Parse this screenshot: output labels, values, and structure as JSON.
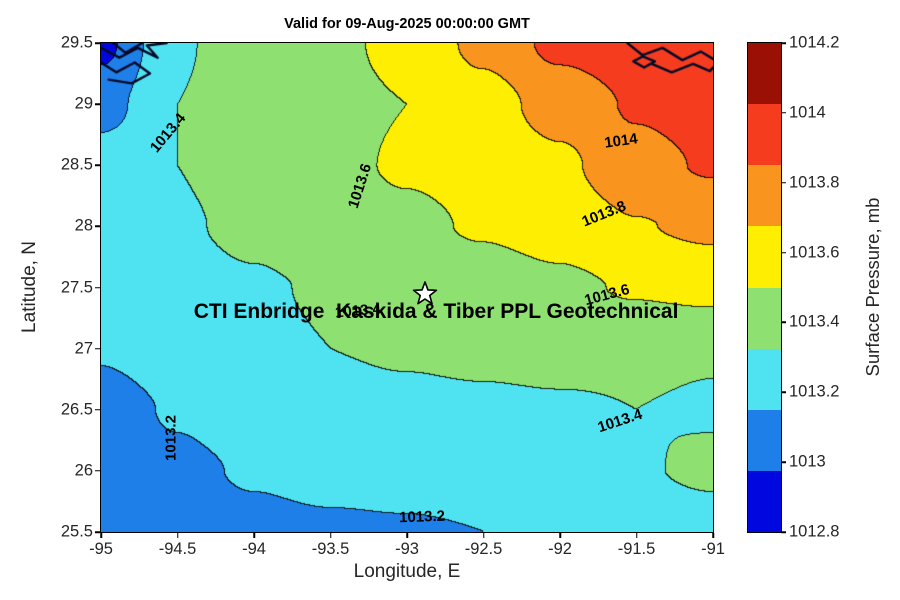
{
  "figure": {
    "title": "Valid for 09-Aug-2025 00:00:00 GMT",
    "xlabel": "Longitude, E",
    "ylabel": "Latitude, N",
    "background_color": "#ffffff"
  },
  "axes": {
    "x_ticks": [
      "-95",
      "-94.5",
      "-94",
      "-93.5",
      "-93",
      "-92.5",
      "-92",
      "-91.5",
      "-91"
    ],
    "y_ticks": [
      "29.5",
      "29",
      "28.5",
      "28",
      "27.5",
      "27",
      "26.5",
      "26",
      "25.5"
    ],
    "xlim": [
      -95,
      -91
    ],
    "ylim": [
      25.5,
      29.5
    ]
  },
  "colorbar": {
    "label": "Surface Pressure, mb",
    "tick_labels_top_to_bottom": [
      "1014.2",
      "1014",
      "1013.8",
      "1013.6",
      "1013.4",
      "1013.2",
      "1013",
      "1012.8"
    ],
    "colors_top_to_bottom": [
      "#9b1005",
      "#f53c1e",
      "#f9941e",
      "#fdee02",
      "#8ee070",
      "#4fe3f2",
      "#1f7fe8",
      "#0008e0"
    ],
    "range": [
      1012.8,
      1014.2
    ]
  },
  "annotations": {
    "site_label": {
      "text": "CTI Enbridge  Kaskida & Tiber PPL Geotechnical",
      "lon": -92.81,
      "lat": 27.3
    },
    "star_marker": {
      "symbol": "star",
      "lon": -92.88,
      "lat": 27.45
    }
  },
  "chart_data": {
    "type": "heatmap",
    "title": "Valid for 09-Aug-2025 00:00:00 GMT",
    "xlabel": "Longitude, E",
    "ylabel": "Latitude, N",
    "value_label": "Surface Pressure, mb",
    "grid": true,
    "x": [
      -95,
      -94.5,
      -94,
      -93.5,
      -93,
      -92.5,
      -92,
      -91.5,
      -91
    ],
    "y": [
      29.5,
      29,
      28.5,
      28,
      27.5,
      27,
      26.5,
      26,
      25.5
    ],
    "values": [
      [
        1012.95,
        1013.38,
        1013.5,
        1013.56,
        1013.65,
        1013.85,
        1014.05,
        1014.12,
        1014.15
      ],
      [
        1013.12,
        1013.4,
        1013.5,
        1013.55,
        1013.6,
        1013.72,
        1013.88,
        1014.02,
        1014.08
      ],
      [
        1013.3,
        1013.4,
        1013.48,
        1013.56,
        1013.62,
        1013.66,
        1013.76,
        1013.94,
        1014.02
      ],
      [
        1013.3,
        1013.38,
        1013.44,
        1013.52,
        1013.56,
        1013.62,
        1013.68,
        1013.79,
        1013.84
      ],
      [
        1013.28,
        1013.34,
        1013.38,
        1013.42,
        1013.46,
        1013.5,
        1013.56,
        1013.62,
        1013.66
      ],
      [
        1013.22,
        1013.3,
        1013.36,
        1013.4,
        1013.42,
        1013.44,
        1013.46,
        1013.44,
        1013.42
      ],
      [
        1013.12,
        1013.22,
        1013.3,
        1013.34,
        1013.36,
        1013.37,
        1013.38,
        1013.4,
        1013.38
      ],
      [
        1013.08,
        1013.16,
        1013.22,
        1013.26,
        1013.28,
        1013.3,
        1013.33,
        1013.38,
        1013.44
      ],
      [
        1013.05,
        1013.1,
        1013.15,
        1013.17,
        1013.18,
        1013.2,
        1013.22,
        1013.26,
        1013.3
      ]
    ],
    "value_min": 1012.8,
    "value_max": 1014.4,
    "band_width": 0.2,
    "contour_levels": [
      1013.0,
      1013.2,
      1013.4,
      1013.6,
      1013.8,
      1014.0,
      1014.2
    ],
    "contour_labels": [
      {
        "text": "1013.4",
        "lon": -94.56,
        "lat": 28.76,
        "angle": -50
      },
      {
        "text": "1013.6",
        "lon": -93.31,
        "lat": 28.33,
        "angle": -72
      },
      {
        "text": "1014",
        "lon": -91.6,
        "lat": 28.7,
        "angle": -8
      },
      {
        "text": "1013.8",
        "lon": -91.71,
        "lat": 28.1,
        "angle": -22
      },
      {
        "text": "1013.6",
        "lon": -91.69,
        "lat": 27.44,
        "angle": -15
      },
      {
        "text": "1013.4",
        "lon": -93.32,
        "lat": 27.31,
        "angle": -5
      },
      {
        "text": "1013.4",
        "lon": -91.61,
        "lat": 26.41,
        "angle": -18
      },
      {
        "text": "1013.2",
        "lon": -94.54,
        "lat": 26.27,
        "angle": -90
      },
      {
        "text": "1013.2",
        "lon": -92.9,
        "lat": 25.62,
        "angle": -2
      }
    ],
    "coastlines": [
      [
        [
          -95.0,
          29.34
        ],
        [
          -94.9,
          29.26
        ],
        [
          -94.78,
          29.34
        ],
        [
          -94.68,
          29.25
        ],
        [
          -94.8,
          29.17
        ],
        [
          -94.95,
          29.2
        ]
      ],
      [
        [
          -95.0,
          29.46
        ],
        [
          -94.88,
          29.38
        ],
        [
          -94.76,
          29.46
        ],
        [
          -94.63,
          29.38
        ],
        [
          -94.7,
          29.48
        ],
        [
          -94.57,
          29.5
        ]
      ],
      [
        [
          -94.92,
          29.5
        ],
        [
          -94.84,
          29.42
        ],
        [
          -94.73,
          29.5
        ]
      ],
      [
        [
          -91.56,
          29.5
        ],
        [
          -91.46,
          29.4
        ],
        [
          -91.33,
          29.46
        ],
        [
          -91.2,
          29.36
        ],
        [
          -91.08,
          29.43
        ],
        [
          -91.0,
          29.37
        ]
      ],
      [
        [
          -91.4,
          29.33
        ],
        [
          -91.27,
          29.26
        ],
        [
          -91.13,
          29.33
        ],
        [
          -91.02,
          29.27
        ],
        [
          -91.0,
          29.3
        ]
      ],
      [
        [
          -91.52,
          29.35
        ],
        [
          -91.45,
          29.3
        ],
        [
          -91.38,
          29.35
        ],
        [
          -91.46,
          29.39
        ],
        [
          -91.52,
          29.35
        ]
      ]
    ],
    "legend_position": "right-colorbar"
  }
}
